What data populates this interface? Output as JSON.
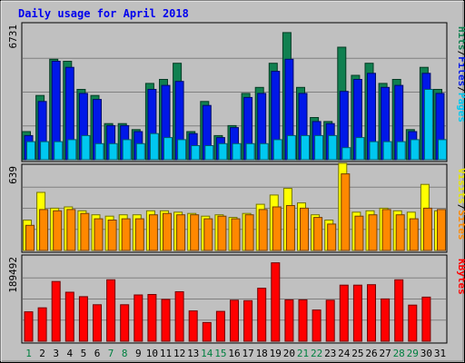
{
  "chart_data": {
    "type": "bar",
    "title": "Daily usage for April 2018",
    "days": [
      "1",
      "2",
      "3",
      "4",
      "5",
      "6",
      "7",
      "8",
      "9",
      "10",
      "11",
      "12",
      "13",
      "14",
      "15",
      "16",
      "17",
      "18",
      "19",
      "20",
      "21",
      "22",
      "23",
      "24",
      "25",
      "26",
      "27",
      "28",
      "29",
      "30",
      "31"
    ],
    "weekend_days": [
      "1",
      "7",
      "8",
      "14",
      "15",
      "21",
      "22",
      "28",
      "29"
    ],
    "panels": [
      {
        "id": "hits-files-pages",
        "ymax": 6731,
        "ymax_label": "6731",
        "legend": [
          "Pages",
          "/",
          "Files",
          "/",
          "Hits"
        ],
        "series": [
          {
            "name": "Hits",
            "color": "#108050",
            "values": [
              1400,
              3200,
              5000,
              4900,
              3500,
              3200,
              1800,
              1800,
              1500,
              3800,
              4000,
              4800,
              1400,
              2900,
              1200,
              1700,
              3300,
              3600,
              4800,
              6330,
              3600,
              2100,
              1900,
              5600,
              4200,
              4800,
              3800,
              4000,
              1500,
              4600,
              3500
            ]
          },
          {
            "name": "Files",
            "color": "#0018e8",
            "values": [
              1200,
              2900,
              4900,
              4600,
              3300,
              3000,
              1700,
              1700,
              1400,
              3500,
              3700,
              3900,
              1300,
              2700,
              1100,
              1600,
              3100,
              3300,
              4400,
              5000,
              3300,
              1900,
              1800,
              3400,
              4000,
              4300,
              3600,
              3700,
              1400,
              4300,
              3300
            ]
          },
          {
            "name": "Pages",
            "color": "#00c8f0",
            "values": [
              900,
              900,
              900,
              1000,
              1200,
              800,
              800,
              1000,
              800,
              1300,
              1100,
              1000,
              700,
              700,
              800,
              800,
              800,
              800,
              1000,
              1200,
              1200,
              1200,
              1200,
              600,
              1100,
              900,
              900,
              900,
              1000,
              3500,
              1000
            ]
          }
        ]
      },
      {
        "id": "visits-sites",
        "ymax": 639,
        "ymax_label": "639",
        "legend": [
          "Sites",
          "/",
          "Visits"
        ],
        "series": [
          {
            "name": "Visits",
            "color": "#ffff00",
            "values": [
              230,
              440,
              320,
              330,
              300,
              270,
              260,
              270,
              270,
              300,
              300,
              290,
              280,
              260,
              270,
              250,
              280,
              350,
              420,
              470,
              360,
              270,
              230,
              660,
              290,
              300,
              320,
              300,
              290,
              500,
              300
            ]
          },
          {
            "name": "Sites",
            "color": "#ff8800",
            "values": [
              190,
              310,
              300,
              310,
              280,
              240,
              230,
              240,
              240,
              270,
              280,
              270,
              270,
              240,
              260,
              240,
              270,
              310,
              330,
              340,
              320,
              250,
              200,
              580,
              260,
              270,
              310,
              270,
              240,
              320,
              310
            ]
          }
        ]
      },
      {
        "id": "kbytes",
        "ymax": 189492,
        "ymax_label": "189492",
        "legend": [
          "KBytes"
        ],
        "series": [
          {
            "name": "KBytes",
            "color": "#ff0000",
            "values": [
              66000,
              75000,
              134000,
              110000,
              100000,
              82000,
              138000,
              82000,
              104000,
              105000,
              94000,
              111000,
              68000,
              42000,
              67000,
              92000,
              91000,
              119000,
              176000,
              93000,
              93000,
              70000,
              92000,
              126000,
              126000,
              127000,
              95000,
              138000,
              81000,
              99000,
              0
            ]
          }
        ]
      }
    ]
  }
}
